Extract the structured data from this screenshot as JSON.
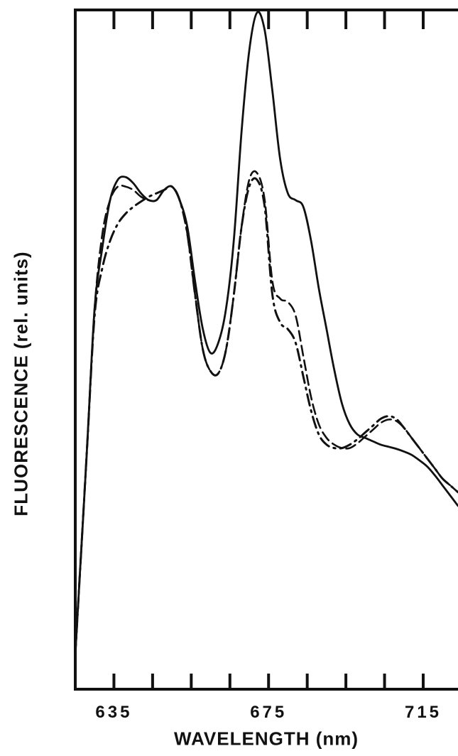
{
  "chart_data": {
    "type": "line",
    "xlabel": "WAVELENGTH (nm)",
    "ylabel": "FLUORESCENCE (rel. units)",
    "xlim": [
      625,
      724
    ],
    "ylim": [
      0,
      1
    ],
    "x_ticks": [
      635,
      645,
      655,
      665,
      675,
      685,
      695,
      705,
      715
    ],
    "x_tick_labels": [
      "635",
      "675",
      "715"
    ],
    "x_tick_label_values": [
      635,
      675,
      715
    ],
    "grid": false,
    "series": [
      {
        "style": "solid",
        "x": [
          625,
          626,
          628,
          630,
          632,
          634,
          636,
          638,
          640,
          642,
          644,
          646,
          648,
          650,
          652,
          654,
          656,
          658,
          660,
          662,
          664,
          666,
          668,
          670,
          672,
          674,
          676,
          678,
          680,
          682,
          684,
          686,
          688,
          690,
          692,
          694,
          696,
          698,
          700,
          702,
          704,
          706,
          708,
          710,
          712,
          714,
          716,
          718,
          720,
          722,
          724
        ],
        "y": [
          0.05,
          0.15,
          0.35,
          0.56,
          0.65,
          0.72,
          0.75,
          0.754,
          0.745,
          0.73,
          0.72,
          0.72,
          0.735,
          0.74,
          0.72,
          0.68,
          0.6,
          0.53,
          0.495,
          0.51,
          0.56,
          0.66,
          0.82,
          0.94,
          0.996,
          0.97,
          0.88,
          0.78,
          0.73,
          0.72,
          0.71,
          0.66,
          0.59,
          0.53,
          0.47,
          0.42,
          0.39,
          0.375,
          0.37,
          0.365,
          0.36,
          0.357,
          0.354,
          0.35,
          0.345,
          0.337,
          0.328,
          0.315,
          0.3,
          0.285,
          0.27
        ]
      },
      {
        "style": "dashed",
        "x": [
          625,
          626,
          628,
          630,
          632,
          634,
          636,
          638,
          640,
          642,
          644,
          646,
          648,
          650,
          652,
          654,
          656,
          658,
          660,
          662,
          664,
          666,
          668,
          670,
          672,
          674,
          676,
          678,
          680,
          682,
          684,
          686,
          688,
          690,
          692,
          694,
          696,
          698,
          700,
          702,
          704,
          706,
          708,
          710,
          712,
          714,
          716,
          718,
          720,
          722,
          724
        ],
        "y": [
          0.05,
          0.15,
          0.35,
          0.56,
          0.67,
          0.72,
          0.74,
          0.74,
          0.735,
          0.725,
          0.72,
          0.72,
          0.735,
          0.74,
          0.72,
          0.67,
          0.58,
          0.5,
          0.468,
          0.465,
          0.5,
          0.58,
          0.68,
          0.75,
          0.76,
          0.72,
          0.6,
          0.575,
          0.57,
          0.55,
          0.49,
          0.43,
          0.39,
          0.37,
          0.36,
          0.355,
          0.355,
          0.362,
          0.372,
          0.382,
          0.392,
          0.397,
          0.395,
          0.385,
          0.37,
          0.355,
          0.34,
          0.325,
          0.31,
          0.3,
          0.29
        ]
      },
      {
        "style": "dash-dot",
        "x": [
          625,
          626,
          628,
          630,
          632,
          634,
          636,
          638,
          640,
          642,
          644,
          646,
          648,
          650,
          652,
          654,
          656,
          658,
          660,
          662,
          664,
          666,
          668,
          670,
          672,
          674,
          676,
          678,
          680,
          682,
          684,
          686,
          688,
          690,
          692,
          694,
          696,
          698,
          700,
          702,
          704,
          706,
          708,
          710,
          712,
          714,
          716,
          718,
          720,
          722,
          724
        ],
        "y": [
          0.05,
          0.15,
          0.35,
          0.55,
          0.62,
          0.66,
          0.685,
          0.7,
          0.71,
          0.718,
          0.725,
          0.73,
          0.735,
          0.74,
          0.72,
          0.67,
          0.58,
          0.5,
          0.468,
          0.465,
          0.5,
          0.58,
          0.68,
          0.74,
          0.75,
          0.71,
          0.58,
          0.54,
          0.53,
          0.51,
          0.46,
          0.41,
          0.375,
          0.36,
          0.355,
          0.355,
          0.36,
          0.368,
          0.378,
          0.388,
          0.398,
          0.402,
          0.398,
          0.385,
          0.37,
          0.355,
          0.34,
          0.325,
          0.31,
          0.3,
          0.29
        ]
      }
    ]
  }
}
